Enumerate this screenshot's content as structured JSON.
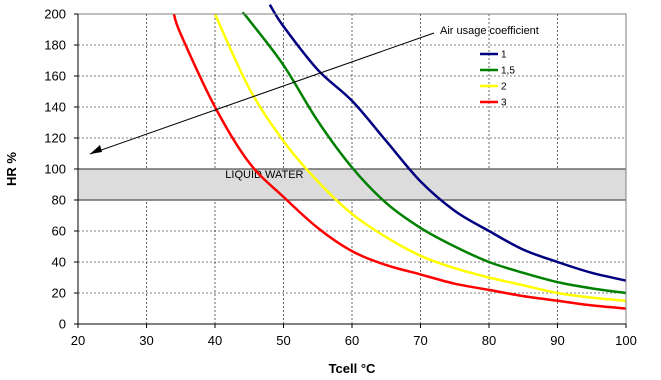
{
  "chart_data": {
    "type": "line",
    "xlabel": "Tcell °C",
    "ylabel": "HR %",
    "xlim": [
      20,
      100
    ],
    "ylim": [
      0,
      200
    ],
    "x_ticks": [
      20,
      30,
      40,
      50,
      60,
      70,
      80,
      90,
      100
    ],
    "y_ticks": [
      0,
      20,
      40,
      60,
      80,
      100,
      120,
      140,
      160,
      180,
      200
    ],
    "grid": true,
    "legend_position": "top-right",
    "legend_title": "Air usage coefficient",
    "series": [
      {
        "name": "1",
        "color": "#000080",
        "x": [
          48,
          50,
          55,
          60,
          65,
          70,
          75,
          80,
          85,
          90,
          95,
          100
        ],
        "y": [
          206,
          192,
          164,
          144,
          118,
          92,
          73,
          60,
          48,
          40,
          33,
          28
        ]
      },
      {
        "name": "1,5",
        "color": "#008000",
        "x": [
          44,
          45,
          50,
          55,
          60,
          65,
          70,
          75,
          80,
          85,
          90,
          95,
          100
        ],
        "y": [
          201,
          196,
          167,
          131,
          101,
          78,
          62,
          50,
          40,
          33,
          27,
          23,
          20
        ]
      },
      {
        "name": "2",
        "color": "#ffff00",
        "x": [
          40,
          45,
          50,
          55,
          60,
          65,
          70,
          75,
          80,
          85,
          90,
          95,
          100
        ],
        "y": [
          200,
          152,
          118,
          92,
          71,
          56,
          44,
          36,
          30,
          25,
          20,
          17,
          15
        ]
      },
      {
        "name": "3",
        "color": "#ff0000",
        "x": [
          34,
          35,
          40,
          45,
          50,
          55,
          60,
          65,
          70,
          75,
          80,
          85,
          90,
          95,
          100
        ],
        "y": [
          200,
          187,
          140,
          104,
          82,
          62,
          47,
          38,
          32,
          26,
          22,
          18,
          15,
          12,
          10
        ]
      }
    ],
    "regions": [
      {
        "label": "LIQUID WATER",
        "y_range": [
          80,
          100
        ],
        "color": "#dcdcdc"
      }
    ]
  }
}
